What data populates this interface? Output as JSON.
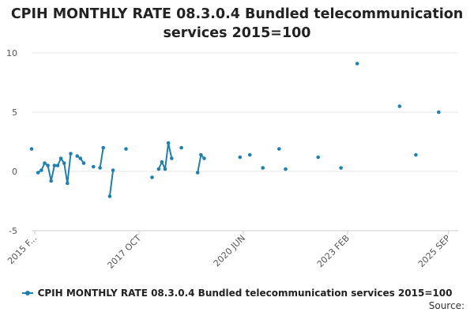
{
  "title_line1": "CPIH MONTHLY RATE 08.3.0.4 Bundled telecommunication",
  "title_line2": "services 2015=100",
  "source": "Source:",
  "colors": {
    "series": "#1f7fb0",
    "grid": "#e6e6e6",
    "axis": "#cccccc",
    "text": "#555555"
  },
  "chart_data": {
    "type": "line",
    "title": "CPIH MONTHLY RATE 08.3.0.4 Bundled telecommunication services 2015=100",
    "xlabel": "",
    "ylabel": "",
    "ylim": [
      -5,
      10
    ],
    "y_ticks": [
      -5,
      0,
      5,
      10
    ],
    "x_ticks": [
      "2015 F...",
      "2017 OCT",
      "2020 JUN",
      "2023 FEB",
      "2025 SEP"
    ],
    "x_range": [
      "2015-01",
      "2025-12"
    ],
    "grid": true,
    "legend_position": "bottom",
    "series": [
      {
        "name": "CPIH MONTHLY RATE 08.3.0.4 Bundled telecommunication services 2015=100",
        "points": [
          [
            "2015-01",
            1.9
          ],
          [
            "2015-03",
            -0.1
          ],
          [
            "2015-04",
            0.1
          ],
          [
            "2015-05",
            0.7
          ],
          [
            "2015-06",
            0.5
          ],
          [
            "2015-07",
            -0.8
          ],
          [
            "2015-08",
            0.5
          ],
          [
            "2015-09",
            0.5
          ],
          [
            "2015-10",
            1.1
          ],
          [
            "2015-11",
            0.7
          ],
          [
            "2015-12",
            -1.0
          ],
          [
            "2016-01",
            1.5
          ],
          [
            "2016-03",
            1.3
          ],
          [
            "2016-04",
            1.1
          ],
          [
            "2016-05",
            0.7
          ],
          [
            "2016-08",
            0.4
          ],
          [
            "2016-10",
            0.3
          ],
          [
            "2016-11",
            2.0
          ],
          [
            "2017-01",
            -2.1
          ],
          [
            "2017-02",
            0.1
          ],
          [
            "2017-06",
            1.9
          ],
          [
            "2018-02",
            -0.5
          ],
          [
            "2018-04",
            0.2
          ],
          [
            "2018-05",
            0.8
          ],
          [
            "2018-06",
            0.2
          ],
          [
            "2018-07",
            2.4
          ],
          [
            "2018-08",
            1.1
          ],
          [
            "2018-11",
            2.0
          ],
          [
            "2019-04",
            -0.1
          ],
          [
            "2019-05",
            1.4
          ],
          [
            "2019-06",
            1.1
          ],
          [
            "2020-05",
            1.2
          ],
          [
            "2020-08",
            1.4
          ],
          [
            "2020-12",
            0.3
          ],
          [
            "2021-05",
            1.9
          ],
          [
            "2021-07",
            0.2
          ],
          [
            "2022-05",
            1.2
          ],
          [
            "2022-12",
            0.3
          ],
          [
            "2023-05",
            9.1
          ],
          [
            "2024-06",
            5.5
          ],
          [
            "2024-11",
            1.4
          ],
          [
            "2025-06",
            5.0
          ]
        ]
      }
    ]
  }
}
